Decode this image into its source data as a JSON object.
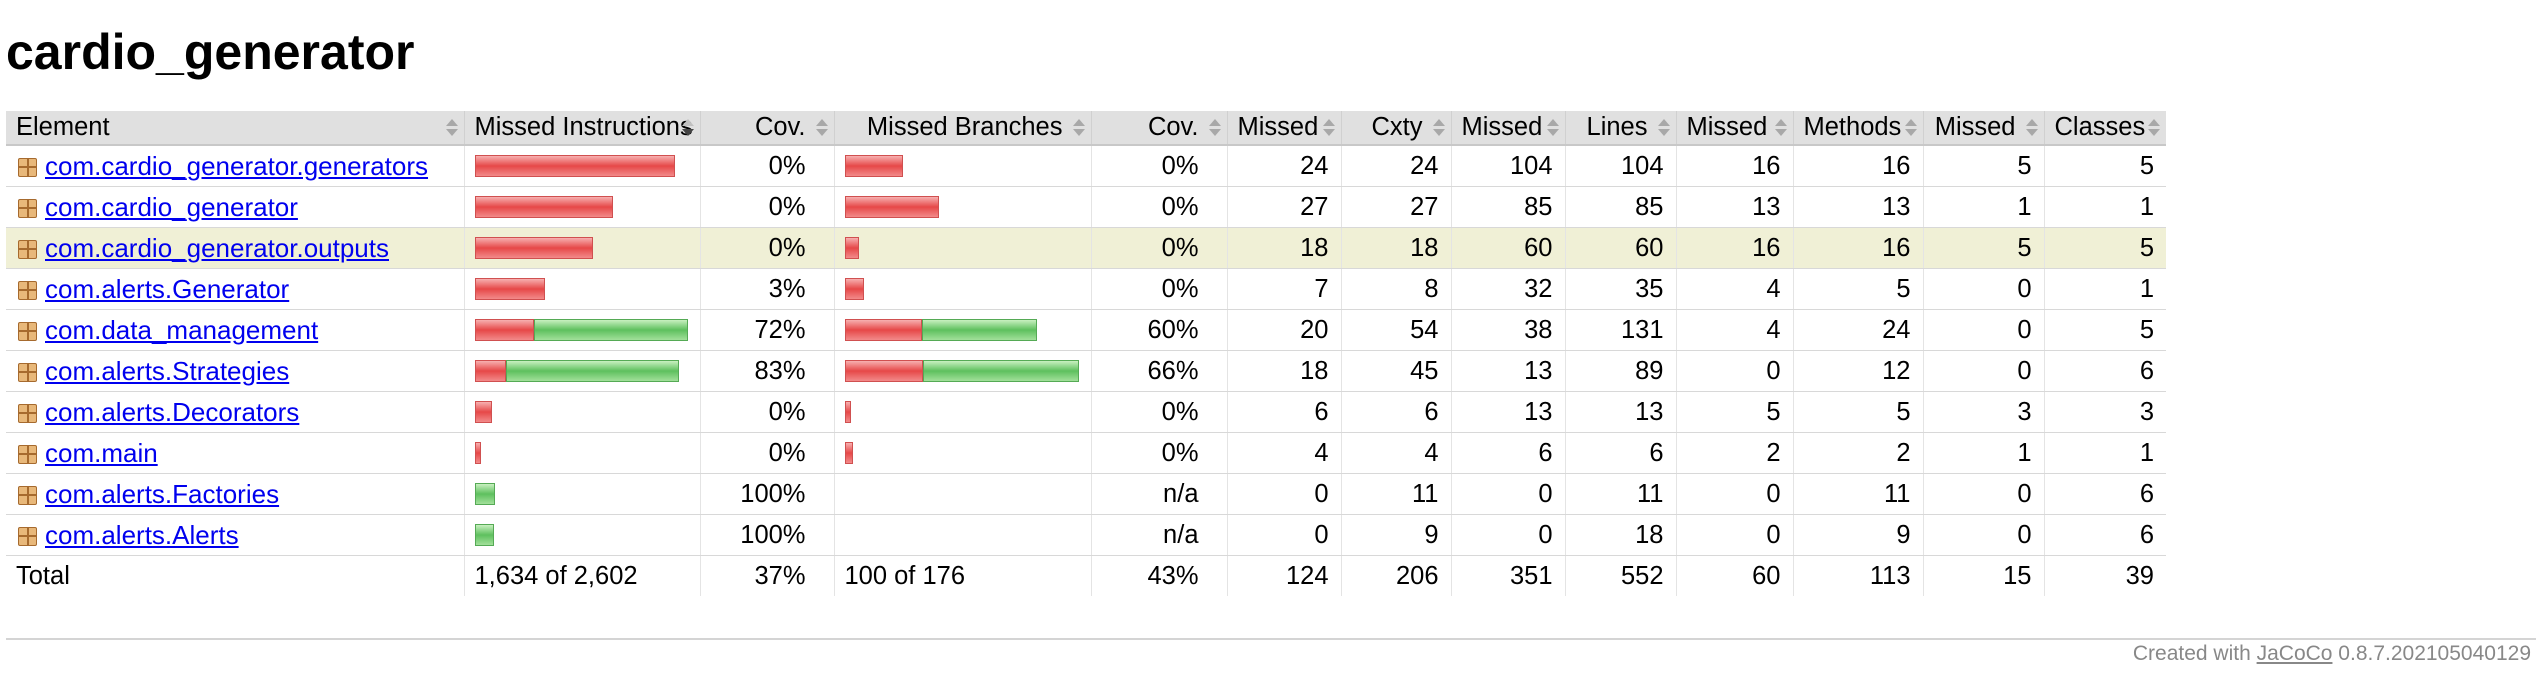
{
  "page": {
    "title": "cardio_generator"
  },
  "table": {
    "headers": [
      "Element",
      "Missed Instructions",
      "Cov.",
      "Missed Branches",
      "Cov.",
      "Missed",
      "Cxty",
      "Missed",
      "Lines",
      "Missed",
      "Methods",
      "Missed",
      "Classes"
    ],
    "active_sort_column": "Missed Instructions",
    "highlighted_row": "com.cardio_generator.outputs",
    "rows": [
      {
        "name": "com.cardio_generator.generators",
        "instr_missed_frac": 0.0,
        "instr_bar": {
          "red": 0.833,
          "green": 0
        },
        "instr_cov": "0%",
        "branch_bar": {
          "red": 0.24,
          "green": 0
        },
        "branch_cov": "0%",
        "cxty_missed": "24",
        "cxty": "24",
        "lines_missed": "104",
        "lines": "104",
        "methods_missed": "16",
        "methods": "16",
        "classes_missed": "5",
        "classes": "5"
      },
      {
        "name": "com.cardio_generator",
        "instr_bar": {
          "red": 0.573,
          "green": 0
        },
        "instr_cov": "0%",
        "branch_bar": {
          "red": 0.39,
          "green": 0
        },
        "branch_cov": "0%",
        "cxty_missed": "27",
        "cxty": "27",
        "lines_missed": "85",
        "lines": "85",
        "methods_missed": "13",
        "methods": "13",
        "classes_missed": "1",
        "classes": "1"
      },
      {
        "name": "com.cardio_generator.outputs",
        "instr_bar": {
          "red": 0.49,
          "green": 0
        },
        "instr_cov": "0%",
        "branch_bar": {
          "red": 0.06,
          "green": 0
        },
        "branch_cov": "0%",
        "cxty_missed": "18",
        "cxty": "18",
        "lines_missed": "60",
        "lines": "60",
        "methods_missed": "16",
        "methods": "16",
        "classes_missed": "5",
        "classes": "5"
      },
      {
        "name": "com.alerts.Generator",
        "instr_bar": {
          "red": 0.29,
          "green": 0
        },
        "instr_cov": "3%",
        "branch_bar": {
          "red": 0.08,
          "green": 0
        },
        "branch_cov": "0%",
        "cxty_missed": "7",
        "cxty": "8",
        "lines_missed": "32",
        "lines": "35",
        "methods_missed": "4",
        "methods": "5",
        "classes_missed": "0",
        "classes": "1"
      },
      {
        "name": "com.data_management",
        "instr_bar": {
          "red": 0.27,
          "green": 0.7
        },
        "instr_cov": "72%",
        "branch_bar": {
          "red": 0.32,
          "green": 0.48
        },
        "branch_cov": "60%",
        "cxty_missed": "20",
        "cxty": "54",
        "lines_missed": "38",
        "lines": "131",
        "methods_missed": "4",
        "methods": "24",
        "classes_missed": "0",
        "classes": "5"
      },
      {
        "name": "com.alerts.Strategies",
        "instr_bar": {
          "red": 0.13,
          "green": 0.72
        },
        "instr_cov": "83%",
        "branch_bar": {
          "red": 0.34,
          "green": 0.67
        },
        "branch_cov": "66%",
        "cxty_missed": "18",
        "cxty": "45",
        "lines_missed": "13",
        "lines": "89",
        "methods_missed": "0",
        "methods": "12",
        "classes_missed": "0",
        "classes": "6"
      },
      {
        "name": "com.alerts.Decorators",
        "instr_bar": {
          "red": 0.07,
          "green": 0
        },
        "instr_cov": "0%",
        "branch_bar": {
          "red": 0.02,
          "green": 0
        },
        "branch_cov": "0%",
        "cxty_missed": "6",
        "cxty": "6",
        "lines_missed": "13",
        "lines": "13",
        "methods_missed": "5",
        "methods": "5",
        "classes_missed": "3",
        "classes": "3"
      },
      {
        "name": "com.main",
        "instr_bar": {
          "red": 0.025,
          "green": 0
        },
        "instr_cov": "0%",
        "branch_bar": {
          "red": 0.035,
          "green": 0
        },
        "branch_cov": "0%",
        "cxty_missed": "4",
        "cxty": "4",
        "lines_missed": "6",
        "lines": "6",
        "methods_missed": "2",
        "methods": "2",
        "classes_missed": "1",
        "classes": "1"
      },
      {
        "name": "com.alerts.Factories",
        "instr_bar": {
          "red": 0,
          "green": 0.085
        },
        "instr_cov": "100%",
        "branch_bar": {
          "red": 0,
          "green": 0
        },
        "branch_cov": "n/a",
        "cxty_missed": "0",
        "cxty": "11",
        "lines_missed": "0",
        "lines": "11",
        "methods_missed": "0",
        "methods": "11",
        "classes_missed": "0",
        "classes": "6"
      },
      {
        "name": "com.alerts.Alerts",
        "instr_bar": {
          "red": 0,
          "green": 0.08
        },
        "instr_cov": "100%",
        "branch_bar": {
          "red": 0,
          "green": 0
        },
        "branch_cov": "n/a",
        "cxty_missed": "0",
        "cxty": "9",
        "lines_missed": "0",
        "lines": "18",
        "methods_missed": "0",
        "methods": "9",
        "classes_missed": "0",
        "classes": "6"
      }
    ],
    "total": {
      "label": "Total",
      "instr": "1,634 of 2,602",
      "instr_cov": "37%",
      "branch": "100 of 176",
      "branch_cov": "43%",
      "cxty_missed": "124",
      "cxty": "206",
      "lines_missed": "351",
      "lines": "552",
      "methods_missed": "60",
      "methods": "113",
      "classes_missed": "15",
      "classes": "39"
    }
  },
  "footer": {
    "prefix": "Created with ",
    "link": "JaCoCo",
    "suffix": " 0.8.7.202105040129"
  },
  "colors": {
    "missed": "#e64848",
    "covered": "#5ec05e",
    "highlight": "#f0f0d6",
    "header": "#e0e0e0"
  }
}
